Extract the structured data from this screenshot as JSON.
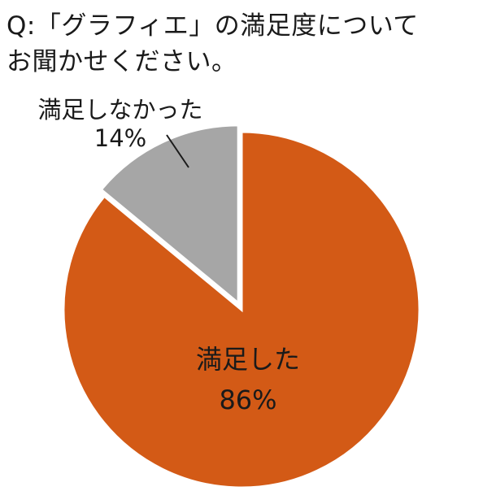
{
  "question": {
    "line1": "Q:「グラフィエ」の満足度について",
    "line2": "お聞かせください。"
  },
  "chart_data": {
    "type": "pie",
    "title": "Q:「グラフィエ」の満足度についてお聞かせください。",
    "categories": [
      "満足した",
      "満足しなかった"
    ],
    "values": [
      86,
      14
    ],
    "value_labels": [
      "86%",
      "14%"
    ],
    "colors": [
      "#d35a16",
      "#a6a6a6"
    ],
    "start": "12 o'clock",
    "direction": "clockwise",
    "legend": "none",
    "label_placement": [
      "inside",
      "outside with leader line"
    ],
    "exploded_slice": "満足しなかった"
  }
}
